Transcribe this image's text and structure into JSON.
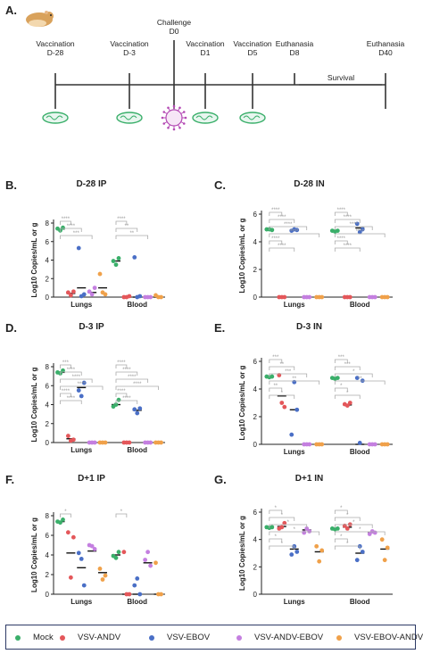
{
  "panel_A": {
    "letter": "A.",
    "events": [
      {
        "line1": "Vaccination",
        "line2": "D-28"
      },
      {
        "line1": "Vaccination",
        "line2": "D-3"
      },
      {
        "line1": "Challenge",
        "line2": "D0"
      },
      {
        "line1": "Vaccination",
        "line2": "D1"
      },
      {
        "line1": "Vaccination",
        "line2": "D5"
      },
      {
        "line1": "Euthanasia",
        "line2": "D8"
      },
      {
        "line1": "Euthanasia",
        "line2": "D40"
      }
    ],
    "survival_label": "Survival"
  },
  "colors": {
    "Mock": "#3aaf6a",
    "VSV-ANDV": "#e4575a",
    "VSV-EBOV": "#4a6fc6",
    "VSV-ANDV-EBOV": "#c47fe0",
    "VSV-EBOV-ANDV": "#f0a14a",
    "sig": "#aaaaaa"
  },
  "legend": [
    "Mock",
    "VSV-ANDV",
    "VSV-EBOV",
    "VSV-ANDV-EBOV",
    "VSV-EBOV-ANDV"
  ],
  "chart_data": [
    {
      "letter": "B.",
      "title": "D-28 IP",
      "type": "scatter",
      "ylabel": "Log10 Copies/mL or g",
      "ylim": [
        0,
        8
      ],
      "yticks": [
        0,
        2,
        4,
        6,
        8
      ],
      "categories": [
        "Lungs",
        "Blood"
      ],
      "series": [
        {
          "name": "Mock",
          "values": [
            [
              7.4,
              7.2,
              7.5
            ],
            [
              3.9,
              3.5,
              4.2
            ]
          ],
          "mean": [
            7.35,
            3.9
          ]
        },
        {
          "name": "VSV-ANDV",
          "values": [
            [
              0.5,
              0.2,
              0.6
            ],
            [
              0,
              0,
              0.1
            ]
          ],
          "mean": [
            0.4,
            0
          ]
        },
        {
          "name": "VSV-EBOV",
          "values": [
            [
              5.3,
              0.1,
              0.3
            ],
            [
              4.3,
              0,
              0.1
            ]
          ],
          "mean": [
            1.0,
            0
          ]
        },
        {
          "name": "VSV-ANDV-EBOV",
          "values": [
            [
              0.6,
              0.3,
              1.0
            ],
            [
              0,
              0,
              0
            ]
          ],
          "mean": [
            0.5,
            0
          ]
        },
        {
          "name": "VSV-EBOV-ANDV",
          "values": [
            [
              2.5,
              0.5,
              0.3
            ],
            [
              0.2,
              0,
              0
            ]
          ],
          "mean": [
            1.0,
            0
          ]
        }
      ],
      "sig_labels": [
        "****",
        "****",
        "***",
        "****",
        "**",
        "**"
      ]
    },
    {
      "letter": "C.",
      "title": "D-28 IN",
      "type": "scatter",
      "ylabel": "Log10 Copies/mL or g",
      "ylim": [
        0,
        6
      ],
      "yticks": [
        0,
        2,
        4,
        6
      ],
      "categories": [
        "Lungs",
        "Blood"
      ],
      "series": [
        {
          "name": "Mock",
          "values": [
            [
              4.9,
              4.9,
              4.85
            ],
            [
              4.8,
              4.75,
              4.8
            ]
          ],
          "mean": [
            4.9,
            4.8
          ]
        },
        {
          "name": "VSV-ANDV",
          "values": [
            [
              0,
              0,
              0
            ],
            [
              0,
              0,
              0
            ]
          ],
          "mean": [
            0,
            0
          ]
        },
        {
          "name": "VSV-EBOV",
          "values": [
            [
              4.8,
              4.9,
              4.85
            ],
            [
              5.3,
              4.7,
              4.9
            ]
          ],
          "mean": [
            4.85,
            5.0
          ]
        },
        {
          "name": "VSV-ANDV-EBOV",
          "values": [
            [
              0,
              0,
              0
            ],
            [
              0,
              0,
              0
            ]
          ],
          "mean": [
            0,
            0
          ]
        },
        {
          "name": "VSV-EBOV-ANDV",
          "values": [
            [
              0,
              0,
              0
            ],
            [
              0,
              0,
              0
            ]
          ],
          "mean": [
            0,
            0
          ]
        }
      ],
      "sig_labels": [
        "****",
        "****",
        "****",
        "****",
        "****",
        "****",
        "****",
        "****",
        "****",
        "****",
        "****",
        "****"
      ]
    },
    {
      "letter": "D.",
      "title": "D-3 IP",
      "type": "scatter",
      "ylabel": "Log10 Copies/mL or g",
      "ylim": [
        0,
        8
      ],
      "yticks": [
        0,
        2,
        4,
        6,
        8
      ],
      "categories": [
        "Lungs",
        "Blood"
      ],
      "series": [
        {
          "name": "Mock",
          "values": [
            [
              7.4,
              7.3,
              7.6
            ],
            [
              3.8,
              4.0,
              4.5
            ]
          ],
          "mean": [
            7.4,
            4.0
          ]
        },
        {
          "name": "VSV-ANDV",
          "values": [
            [
              0.7,
              0.2,
              0.3
            ],
            [
              0,
              0,
              0
            ]
          ],
          "mean": [
            0.4,
            0
          ]
        },
        {
          "name": "VSV-EBOV",
          "values": [
            [
              5.5,
              4.9,
              6.3
            ],
            [
              3.5,
              3.1,
              3.6
            ]
          ],
          "mean": [
            5.8,
            3.4
          ]
        },
        {
          "name": "VSV-ANDV-EBOV",
          "values": [
            [
              0,
              0,
              0
            ],
            [
              0,
              0,
              0
            ]
          ],
          "mean": [
            0,
            0
          ]
        },
        {
          "name": "VSV-EBOV-ANDV",
          "values": [
            [
              0,
              0,
              0
            ],
            [
              0,
              0,
              0
            ]
          ],
          "mean": [
            0,
            0
          ]
        }
      ],
      "sig_labels": [
        "***",
        "****",
        "****",
        "****",
        "****",
        "****",
        "****",
        "****",
        "****",
        "****",
        "****",
        "****"
      ]
    },
    {
      "letter": "E.",
      "title": "D-3 IN",
      "type": "scatter",
      "ylabel": "Log10 Copies/mL or g",
      "ylim": [
        0,
        6
      ],
      "yticks": [
        0,
        2,
        4,
        6
      ],
      "categories": [
        "Lungs",
        "Blood"
      ],
      "series": [
        {
          "name": "Mock",
          "values": [
            [
              4.9,
              4.85,
              4.9
            ],
            [
              4.8,
              4.75,
              4.8
            ]
          ],
          "mean": [
            4.9,
            4.8
          ]
        },
        {
          "name": "VSV-ANDV",
          "values": [
            [
              5.0,
              3.0,
              2.7
            ],
            [
              2.9,
              2.8,
              3.0
            ]
          ],
          "mean": [
            3.5,
            2.85
          ]
        },
        {
          "name": "VSV-EBOV",
          "values": [
            [
              0.7,
              4.5,
              2.5
            ],
            [
              4.8,
              0.1,
              4.6
            ]
          ],
          "mean": [
            2.5,
            0
          ]
        },
        {
          "name": "VSV-ANDV-EBOV",
          "values": [
            [
              0,
              0,
              0
            ],
            [
              0,
              0,
              0
            ]
          ],
          "mean": [
            0,
            0
          ]
        },
        {
          "name": "VSV-EBOV-ANDV",
          "values": [
            [
              0,
              0,
              0
            ],
            [
              0,
              0,
              0
            ]
          ],
          "mean": [
            0,
            0
          ]
        }
      ],
      "sig_labels": [
        "***",
        "**",
        "***",
        "**",
        "**",
        "*",
        "***",
        "***",
        "*",
        "**",
        "*",
        "*"
      ]
    },
    {
      "letter": "F.",
      "title": "D+1 IP",
      "type": "scatter",
      "ylabel": "Log10 Copies/mL or g",
      "ylim": [
        0,
        8
      ],
      "yticks": [
        0,
        2,
        4,
        6,
        8
      ],
      "categories": [
        "Lungs",
        "Blood"
      ],
      "series": [
        {
          "name": "Mock",
          "values": [
            [
              7.4,
              7.3,
              7.6
            ],
            [
              3.9,
              3.7,
              4.3
            ]
          ],
          "mean": [
            7.4,
            4.0
          ]
        },
        {
          "name": "VSV-ANDV",
          "values": [
            [
              6.3,
              1.7,
              5.8
            ],
            [
              4.3,
              0,
              0
            ]
          ],
          "mean": [
            4.2,
            0
          ]
        },
        {
          "name": "VSV-EBOV",
          "values": [
            [
              4.2,
              3.6,
              0.9
            ],
            [
              0.9,
              1.6,
              0
            ]
          ],
          "mean": [
            2.7,
            0
          ]
        },
        {
          "name": "VSV-ANDV-EBOV",
          "values": [
            [
              5.0,
              4.9,
              4.6
            ],
            [
              3.5,
              4.3,
              2.9
            ]
          ],
          "mean": [
            4.4,
            3.2
          ]
        },
        {
          "name": "VSV-EBOV-ANDV",
          "values": [
            [
              2.6,
              1.5,
              1.9
            ],
            [
              3.2,
              0,
              0
            ]
          ],
          "mean": [
            2.2,
            0
          ]
        }
      ],
      "sig_labels": [
        "*",
        "*"
      ]
    },
    {
      "letter": "G.",
      "title": "D+1 IN",
      "type": "scatter",
      "ylabel": "Log10 Copies/mL or g",
      "ylim": [
        0,
        6
      ],
      "yticks": [
        0,
        2,
        4,
        6
      ],
      "categories": [
        "Lungs",
        "Blood"
      ],
      "series": [
        {
          "name": "Mock",
          "values": [
            [
              4.9,
              4.85,
              4.9
            ],
            [
              4.8,
              4.75,
              4.8
            ]
          ],
          "mean": [
            4.9,
            4.8
          ]
        },
        {
          "name": "VSV-ANDV",
          "values": [
            [
              4.8,
              4.9,
              5.2
            ],
            [
              5.0,
              4.8,
              5.1
            ]
          ],
          "mean": [
            4.95,
            4.9
          ]
        },
        {
          "name": "VSV-EBOV",
          "values": [
            [
              2.9,
              3.5,
              3.1
            ],
            [
              2.5,
              3.5,
              3.1
            ]
          ],
          "mean": [
            3.3,
            3.0
          ]
        },
        {
          "name": "VSV-ANDV-EBOV",
          "values": [
            [
              4.5,
              4.8,
              4.6
            ],
            [
              4.4,
              4.6,
              4.5
            ]
          ],
          "mean": [
            4.7,
            4.5
          ]
        },
        {
          "name": "VSV-EBOV-ANDV",
          "values": [
            [
              3.5,
              2.4,
              3.2
            ],
            [
              4.0,
              2.5,
              3.4
            ]
          ],
          "mean": [
            3.1,
            3.3
          ]
        }
      ],
      "sig_labels": [
        "*",
        "*",
        "*",
        "*",
        "*",
        "*",
        "*",
        "*",
        "*",
        "*",
        "*",
        "*",
        "*",
        "*",
        "*",
        "*"
      ]
    }
  ]
}
